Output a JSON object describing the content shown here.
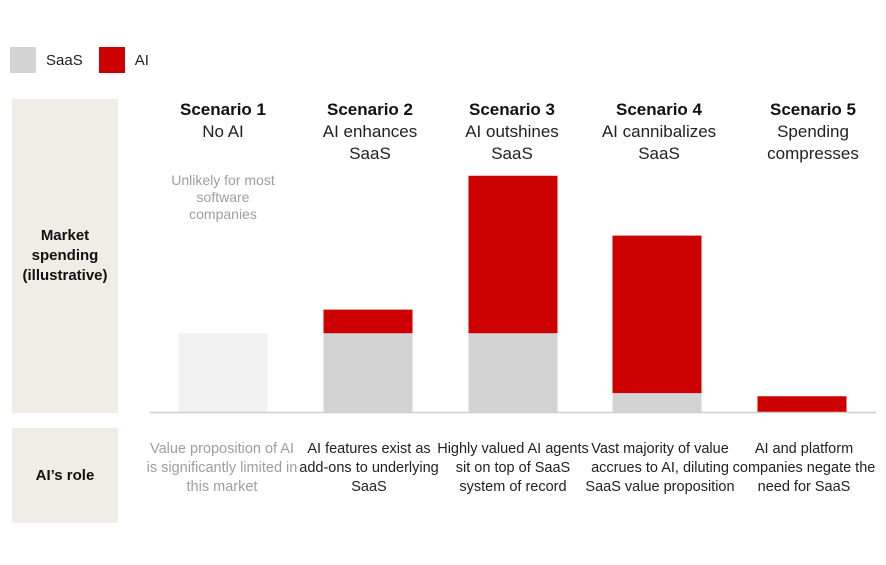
{
  "legend": [
    {
      "label": "SaaS",
      "color": "#d3d3d3"
    },
    {
      "label": "AI",
      "color": "#cc0000"
    }
  ],
  "row_labels": {
    "market": "Market spending (illustrative)",
    "role": "AI’s role"
  },
  "scenarios": [
    {
      "title": "Scenario 1",
      "subtitle": "No AI",
      "note": "Unlikely for most software companies",
      "role": "Value proposition of AI is significantly limited in this market"
    },
    {
      "title": "Scenario 2",
      "subtitle": "AI enhances\nSaaS",
      "role": "AI features exist as add-ons to underlying SaaS"
    },
    {
      "title": "Scenario 3",
      "subtitle": "AI outshines\nSaaS",
      "role": "Highly valued AI agents sit on top of SaaS system of record"
    },
    {
      "title": "Scenario 4",
      "subtitle": "AI cannibalizes\nSaaS",
      "role": "Vast majority of value accrues to AI, diluting SaaS value proposition"
    },
    {
      "title": "Scenario 5",
      "subtitle": "Spending\ncompresses",
      "role": "AI and platform companies negate the need for SaaS"
    }
  ],
  "chart_data": {
    "type": "bar",
    "stacked": true,
    "title": "Market spending (illustrative)",
    "categories": [
      "Scenario 1",
      "Scenario 2",
      "Scenario 3",
      "Scenario 4",
      "Scenario 5"
    ],
    "series": [
      {
        "name": "SaaS",
        "color": "#d3d3d3",
        "values": [
          25,
          25,
          25,
          6,
          0
        ]
      },
      {
        "name": "AI",
        "color": "#cc0000",
        "values": [
          0,
          7.5,
          50,
          50,
          5
        ]
      }
    ],
    "muted_categories": [
      "Scenario 1"
    ],
    "muted_color": "#f2f1f1",
    "ylim": [
      0,
      80
    ],
    "xlabel": "",
    "ylabel": ""
  }
}
